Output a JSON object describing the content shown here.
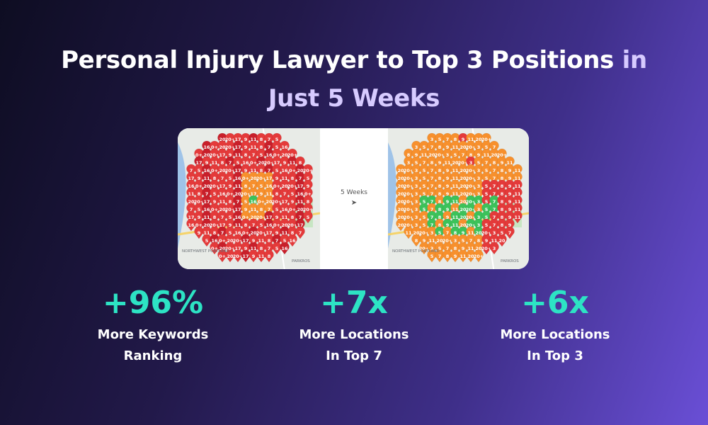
{
  "headline": {
    "line1_main": "Personal Injury Lawyer to Top 3 Positions",
    "line1_accent": "in",
    "line2_accent": "Just 5 Weeks"
  },
  "comparison": {
    "middle_label": "5 Weeks",
    "arrow": "➤",
    "before_map": {
      "marker_colors": [
        "#e43a3a",
        "#c81f2a",
        "#f7902d",
        "#3cc25a"
      ],
      "sample_labels": [
        "20",
        "20+",
        "17",
        "9",
        "11",
        "8",
        "7",
        "5",
        "16",
        "0+"
      ],
      "map_labels": [
        "NORTHWEST PORTLAND",
        "PARKROS"
      ]
    },
    "after_map": {
      "marker_colors": [
        "#f7902d",
        "#e43a3a",
        "#3cc25a"
      ],
      "sample_labels": [
        "3",
        "5",
        "7",
        "8",
        "9",
        "11",
        "20",
        "20+"
      ],
      "map_labels": [
        "NORTHWEST PORTLAND",
        "PARKROS"
      ]
    }
  },
  "stats": [
    {
      "value": "+96%",
      "line1": "More Keywords",
      "line2": "Ranking"
    },
    {
      "value": "+7x",
      "line1": "More Locations",
      "line2": "In Top 7"
    },
    {
      "value": "+6x",
      "line1": "More Locations",
      "line2": "In Top 3"
    }
  ],
  "colors": {
    "accent_text": "#d7cbff",
    "stat_value": "#2de3c4",
    "red_marker": "#e43a3a",
    "dark_red_marker": "#c81f2a",
    "orange_marker": "#f7902d",
    "green_marker": "#3cc25a"
  }
}
